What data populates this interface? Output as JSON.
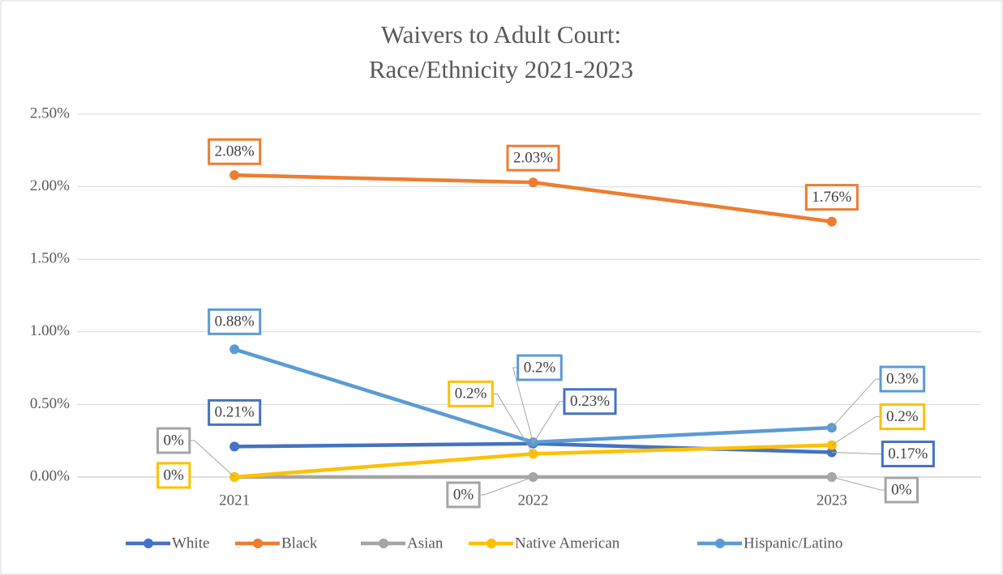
{
  "chart_data": {
    "type": "line",
    "title": [
      "Waivers to Adult Court:",
      "Race/Ethnicity 2021-2023"
    ],
    "categories": [
      "2021",
      "2022",
      "2023"
    ],
    "ylim": [
      0,
      2.5
    ],
    "yticks": [
      {
        "value": 0,
        "label": "0.00%"
      },
      {
        "value": 0.5,
        "label": "0.50%"
      },
      {
        "value": 1,
        "label": "1.00%"
      },
      {
        "value": 1.5,
        "label": "1.50%"
      },
      {
        "value": 2,
        "label": "2.00%"
      },
      {
        "value": 2.5,
        "label": "2.50%"
      }
    ],
    "grid": true,
    "legend": "bottom",
    "series": [
      {
        "name": "White",
        "color": "#4472c4",
        "values": [
          0.21,
          0.23,
          0.17
        ],
        "value_labels": [
          "0.21%",
          "0.23%",
          "0.17%"
        ]
      },
      {
        "name": "Black",
        "color": "#ed7d31",
        "values": [
          2.08,
          2.03,
          1.76
        ],
        "value_labels": [
          "2.08%",
          "2.03%",
          "1.76%"
        ]
      },
      {
        "name": "Asian",
        "color": "#a5a5a5",
        "values": [
          0,
          0,
          0
        ],
        "value_labels": [
          "0%",
          "0%",
          "0%"
        ]
      },
      {
        "name": "Native American",
        "color": "#ffc000",
        "values": [
          0,
          0.16,
          0.22
        ],
        "value_labels": [
          "0%",
          "0.2%",
          "0.2%"
        ]
      },
      {
        "name": "Hispanic/Latino",
        "color": "#5b9bd5",
        "values": [
          0.88,
          0.24,
          0.34
        ],
        "value_labels": [
          "0.88%",
          "0.2%",
          "0.3%"
        ]
      }
    ]
  }
}
